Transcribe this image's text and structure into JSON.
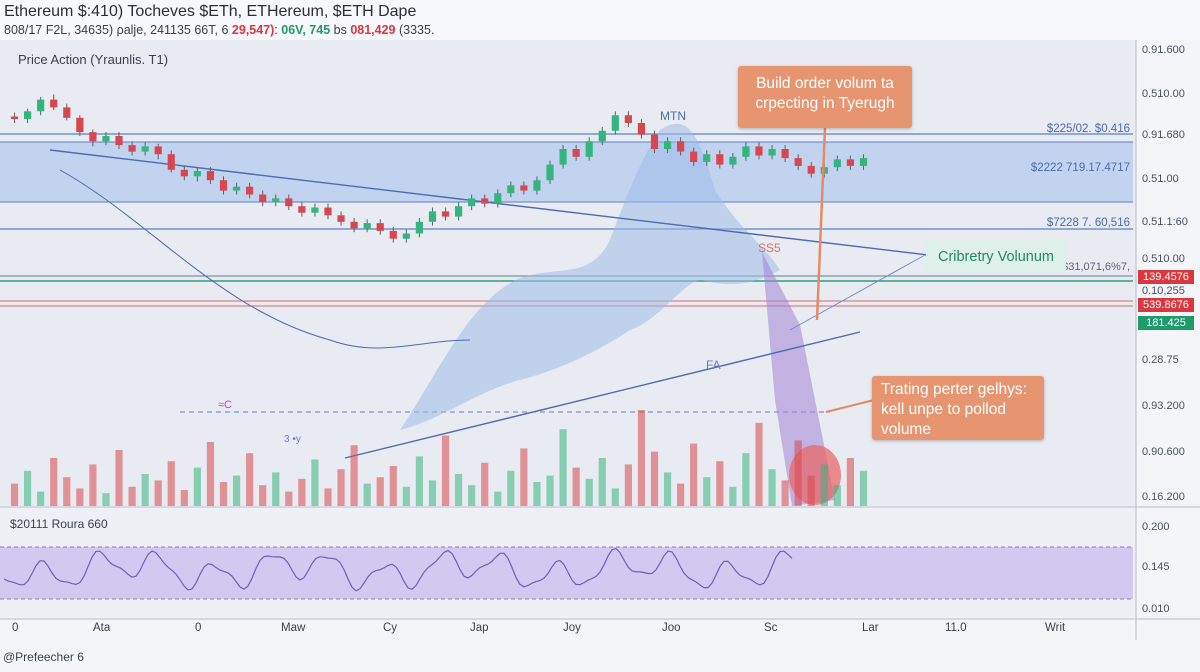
{
  "header": {
    "title": "Ethereum $:410) Tocheves $ETh, ETHereum, $ETH Dape",
    "stats": {
      "prefix": "808/17 F2L, 34635) ρalje, 241135 66T, 6 ",
      "red1": "29,547)",
      "mid": ": ",
      "green": "06V, 745",
      "mid2": " bs ",
      "red2": "081,429",
      "suffix": " (3335."
    }
  },
  "price_panel": {
    "label": "Price Action (Yraunlis. T1)",
    "ma_label": "≈C",
    "ma_label2": "3 •y",
    "mark_a": "MTN",
    "mark_b": "SS5",
    "mark_c": "FA"
  },
  "levels": {
    "l1": "$225/02. $0.416",
    "l2": "$2222 719.17.4717",
    "l3": "$7228 7. 60,516",
    "l4": "$31,071,6%7,"
  },
  "annotations": {
    "callout1": "Build order volum ta crpecting in Tyerugh",
    "callout2": "Trating perter gelhys: kell unpe to pollod volume",
    "volume_label": "Cribretry Volunum"
  },
  "price_axis": [
    "0.91.600",
    "0.510.00",
    "0.91.680",
    "0.51.00",
    "0.51.1:60",
    "0.510.00",
    "0.10,255",
    "0.28.75",
    "0.93.200",
    "0.90.600",
    "0.16.200"
  ],
  "price_tags": {
    "tag1": "139.4576",
    "tag2": "539.8676",
    "tag3": "181.425"
  },
  "rsi_panel": {
    "label": "$20111 Roura 660",
    "axis": [
      "0.200",
      "0.145",
      "0.010"
    ]
  },
  "x_axis": [
    "0",
    "Ata",
    "0",
    "Maw",
    "Cy",
    "Jap",
    "Joy",
    "Joo",
    "Sc",
    "Lar",
    "11.0",
    "Writ"
  ],
  "footer": "@Prefeecher 6",
  "colors": {
    "up": "#34b57e",
    "down": "#d8474f",
    "band": "#b6cdee",
    "rsi_fill": "#cbbff0"
  },
  "chart_data": {
    "type": "candlestick",
    "candles": [
      [
        295,
        293,
        290,
        298
      ],
      [
        293,
        299,
        290,
        301
      ],
      [
        299,
        308,
        296,
        310
      ],
      [
        308,
        302,
        300,
        312
      ],
      [
        302,
        294,
        292,
        305
      ],
      [
        294,
        283,
        280,
        296
      ],
      [
        283,
        276,
        272,
        285
      ],
      [
        276,
        280,
        273,
        283
      ],
      [
        280,
        273,
        270,
        283
      ],
      [
        273,
        268,
        265,
        276
      ],
      [
        268,
        272,
        265,
        275
      ],
      [
        272,
        266,
        262,
        274
      ],
      [
        266,
        254,
        252,
        269
      ],
      [
        254,
        249,
        246,
        257
      ],
      [
        249,
        253,
        245,
        256
      ],
      [
        253,
        246,
        243,
        256
      ],
      [
        246,
        238,
        235,
        249
      ],
      [
        238,
        241,
        235,
        244
      ],
      [
        241,
        235,
        232,
        244
      ],
      [
        235,
        229,
        226,
        238
      ],
      [
        229,
        232,
        226,
        235
      ],
      [
        232,
        226,
        223,
        235
      ],
      [
        226,
        221,
        218,
        229
      ],
      [
        221,
        225,
        218,
        228
      ],
      [
        225,
        219,
        216,
        228
      ],
      [
        219,
        214,
        211,
        222
      ],
      [
        214,
        209,
        206,
        217
      ],
      [
        209,
        213,
        206,
        216
      ],
      [
        213,
        207,
        204,
        216
      ],
      [
        207,
        201,
        198,
        210
      ],
      [
        201,
        205,
        198,
        208
      ],
      [
        205,
        214,
        202,
        217
      ],
      [
        214,
        222,
        211,
        225
      ],
      [
        222,
        218,
        215,
        225
      ],
      [
        218,
        226,
        215,
        229
      ],
      [
        226,
        232,
        223,
        235
      ],
      [
        232,
        228,
        225,
        235
      ],
      [
        228,
        236,
        225,
        239
      ],
      [
        236,
        242,
        233,
        245
      ],
      [
        242,
        238,
        235,
        245
      ],
      [
        238,
        246,
        235,
        249
      ],
      [
        246,
        258,
        243,
        261
      ],
      [
        258,
        270,
        255,
        273
      ],
      [
        270,
        264,
        261,
        273
      ],
      [
        264,
        276,
        261,
        279
      ],
      [
        276,
        284,
        273,
        287
      ],
      [
        284,
        296,
        281,
        299
      ],
      [
        296,
        290,
        287,
        299
      ],
      [
        290,
        281,
        278,
        293
      ],
      [
        281,
        270,
        267,
        284
      ],
      [
        270,
        276,
        267,
        279
      ],
      [
        276,
        268,
        265,
        279
      ],
      [
        268,
        260,
        257,
        271
      ],
      [
        260,
        266,
        257,
        269
      ],
      [
        266,
        258,
        255,
        269
      ],
      [
        258,
        264,
        255,
        267
      ],
      [
        264,
        272,
        261,
        275
      ],
      [
        272,
        265,
        262,
        275
      ],
      [
        265,
        270,
        262,
        273
      ],
      [
        270,
        263,
        260,
        273
      ],
      [
        263,
        257,
        254,
        266
      ],
      [
        257,
        251,
        248,
        260
      ],
      [
        251,
        256,
        248,
        259
      ],
      [
        256,
        262,
        253,
        265
      ],
      [
        262,
        257,
        254,
        265
      ],
      [
        257,
        263,
        254,
        266
      ]
    ],
    "volume": [
      14,
      22,
      9,
      30,
      18,
      11,
      26,
      8,
      35,
      12,
      20,
      16,
      28,
      10,
      24,
      40,
      15,
      19,
      33,
      13,
      21,
      9,
      17,
      29,
      11,
      23,
      38,
      14,
      18,
      25,
      12,
      31,
      16,
      44,
      20,
      13,
      27,
      9,
      22,
      36,
      15,
      19,
      48,
      24,
      17,
      30,
      11,
      26,
      60,
      34,
      21,
      14,
      39,
      18,
      28,
      12,
      33,
      52,
      23,
      16,
      41,
      19,
      26,
      13,
      30,
      22
    ]
  }
}
